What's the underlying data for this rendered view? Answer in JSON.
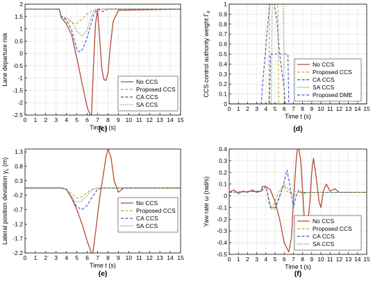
{
  "colors": {
    "no_ccs": "#b5472f",
    "proposed_ccs": "#c9a227",
    "ca_ccs": "#3a4ec0",
    "sa_ccs": "#5c8a3a",
    "proposed_dme": "#3a4ec0",
    "axis": "#000000",
    "grid": "#e3e3e3"
  },
  "chart_data": [
    {
      "panel": "c",
      "caption": "(c)",
      "type": "line",
      "title": "",
      "xlabel": "Time t (s)",
      "ylabel": "Lane departure risk",
      "xlim": [
        0,
        15
      ],
      "ylim": [
        -2.5,
        2
      ],
      "xticks": [
        "0",
        "1",
        "2",
        "3",
        "4",
        "5",
        "6",
        "7",
        "8",
        "9",
        "10",
        "11",
        "12",
        "13",
        "14",
        "15"
      ],
      "yticks": [
        "2",
        "1.5",
        "1",
        "0.5",
        "0",
        "-0.5",
        "-1",
        "-1.5",
        "-2",
        "-2.5"
      ],
      "grid": true,
      "legend": "bottom-right",
      "series": [
        {
          "name": "No CCS",
          "style": "solid",
          "color_key": "no_ccs",
          "x": [
            0,
            3.3,
            3.5,
            4,
            4.5,
            5,
            5.5,
            6,
            6.4,
            6.6,
            6.8,
            7,
            7.2,
            7.4,
            7.6,
            7.8,
            8,
            8.2,
            8.5,
            9,
            15
          ],
          "y": [
            1.8,
            1.8,
            1.45,
            1.2,
            0.75,
            -0.2,
            -1.2,
            -2.2,
            -2.6,
            -0.5,
            1.2,
            1.75,
            0.6,
            -0.6,
            -1.05,
            -1.1,
            -0.8,
            0.2,
            1.3,
            1.75,
            1.8
          ]
        },
        {
          "name": "Proposed CCS",
          "style": "dashed",
          "color_key": "proposed_ccs",
          "x": [
            0,
            3.3,
            3.5,
            4,
            4.5,
            5,
            5.5,
            6,
            6.5,
            7,
            15
          ],
          "y": [
            1.8,
            1.8,
            1.5,
            1.4,
            1.25,
            1.2,
            1.4,
            1.6,
            1.75,
            1.8,
            1.8
          ]
        },
        {
          "name": "CA CCS",
          "style": "dashed",
          "color_key": "ca_ccs",
          "x": [
            0,
            3.3,
            3.5,
            4,
            4.5,
            5,
            5.3,
            5.6,
            6,
            6.3,
            6.6,
            7,
            7.5,
            8,
            15
          ],
          "y": [
            1.8,
            1.8,
            1.5,
            1.35,
            0.95,
            0.15,
            0.05,
            0.2,
            0.65,
            1.1,
            1.55,
            1.8,
            1.7,
            1.8,
            1.8
          ]
        },
        {
          "name": "SA CCS",
          "style": "dotted",
          "color_key": "sa_ccs",
          "x": [
            0,
            3.3,
            3.5,
            4,
            4.5,
            5,
            5.5,
            6,
            6.3,
            6.6,
            7,
            15
          ],
          "y": [
            1.8,
            1.8,
            1.5,
            1.45,
            1.3,
            0.9,
            0.7,
            0.95,
            1.4,
            1.7,
            1.8,
            1.8
          ]
        }
      ]
    },
    {
      "panel": "d",
      "caption": "(d)",
      "type": "line",
      "title": "",
      "xlabel": "Time t (s)",
      "ylabel": "CCS control authority weight Γ",
      "ylabel_sub": "d",
      "xlim": [
        0,
        15
      ],
      "ylim": [
        0,
        1
      ],
      "xticks": [
        "0",
        "1",
        "2",
        "3",
        "4",
        "5",
        "6",
        "7",
        "8",
        "9",
        "10",
        "11",
        "12",
        "13",
        "14",
        "15"
      ],
      "yticks": [
        "1",
        "0.9",
        "0.8",
        "0.7",
        "0.6",
        "0.5",
        "0.4",
        "0.3",
        "0.2",
        "0.1",
        "0"
      ],
      "grid": true,
      "legend": "right",
      "series": [
        {
          "name": "No CCS",
          "style": "solid",
          "color_key": "no_ccs",
          "x": [
            0,
            15
          ],
          "y": [
            0,
            0
          ]
        },
        {
          "name": "Proposed CCS",
          "style": "dashed",
          "color_key": "proposed_ccs",
          "x": [
            0,
            4.3,
            4.4,
            5.3,
            5.4,
            15
          ],
          "y": [
            0,
            0,
            1,
            1,
            0,
            0
          ]
        },
        {
          "name": "CA CCS",
          "style": "dashed",
          "color_key": "ca_ccs",
          "x": [
            0,
            3.5,
            3.6,
            4.4,
            4.9,
            5.2,
            5.5,
            6,
            6.1,
            15
          ],
          "y": [
            0,
            0,
            0.15,
            1,
            1,
            0.85,
            0.5,
            0.15,
            0,
            0
          ]
        },
        {
          "name": "SA CCS",
          "style": "dotted",
          "color_key": "sa_ccs",
          "x": [
            0,
            4.6,
            4.7,
            5.9,
            6,
            15
          ],
          "y": [
            0,
            0,
            1,
            1,
            0,
            0
          ]
        },
        {
          "name": "Proposed DME",
          "style": "dashed",
          "color_key": "proposed_dme",
          "x": [
            0,
            4.4,
            4.5,
            5.4,
            5.5,
            6.4,
            6.5,
            15
          ],
          "y": [
            0,
            0,
            0.5,
            0.5,
            0.5,
            0.5,
            0,
            0
          ]
        }
      ]
    },
    {
      "panel": "e",
      "caption": "(e)",
      "type": "line",
      "title": "",
      "xlabel": "Time t (s)",
      "ylabel": "Lateral position deviation y",
      "ylabel_sub": "L",
      "ylabel_unit": " (m)",
      "xlim": [
        0,
        15
      ],
      "ylim": [
        -2.2,
        1.4
      ],
      "xticks": [
        "0",
        "1",
        "2",
        "3",
        "4",
        "5",
        "6",
        "7",
        "8",
        "9",
        "10",
        "11",
        "12",
        "13",
        "14",
        "15"
      ],
      "yticks": [
        "1.3",
        "0.8",
        "0.3",
        "-0.2",
        "-0.7",
        "-1.2",
        "-1.7",
        "-2.2"
      ],
      "ytick_values": [
        1.3,
        0.8,
        0.3,
        -0.2,
        -0.7,
        -1.2,
        -1.7,
        -2.2
      ],
      "grid": false,
      "legend": "bottom-right",
      "series": [
        {
          "name": "No CCS",
          "style": "solid",
          "color_key": "no_ccs",
          "x": [
            0,
            3.5,
            4,
            4.5,
            5,
            5.5,
            6,
            6.5,
            6.8,
            7.2,
            7.5,
            7.8,
            8,
            8.3,
            8.6,
            9,
            9.5,
            15
          ],
          "y": [
            0.05,
            0.05,
            0,
            -0.3,
            -0.7,
            -1.2,
            -1.8,
            -2.3,
            -1.5,
            -0.3,
            0.4,
            1.1,
            1.4,
            1.1,
            0.3,
            -0.1,
            0.05,
            0.05
          ]
        },
        {
          "name": "Proposed CCS",
          "style": "dashed",
          "color_key": "proposed_ccs",
          "x": [
            0,
            3.5,
            4,
            4.5,
            5,
            5.5,
            6,
            6.5,
            7,
            15
          ],
          "y": [
            0.05,
            0.05,
            0,
            -0.15,
            -0.3,
            -0.25,
            -0.1,
            0,
            0.05,
            0.05
          ]
        },
        {
          "name": "CA CCS",
          "style": "dashed",
          "color_key": "ca_ccs",
          "x": [
            0,
            3.5,
            4,
            4.5,
            5,
            5.5,
            6,
            6.5,
            7,
            7.5,
            8,
            15
          ],
          "y": [
            0.05,
            0.05,
            0,
            -0.3,
            -0.6,
            -0.7,
            -0.55,
            -0.25,
            0,
            0.05,
            0.05,
            0.05
          ]
        },
        {
          "name": "SA CCS",
          "style": "dotted",
          "color_key": "sa_ccs",
          "x": [
            0,
            3.5,
            4,
            4.5,
            5,
            5.5,
            6,
            6.5,
            7,
            15
          ],
          "y": [
            0.05,
            0.05,
            0,
            -0.25,
            -0.45,
            -0.4,
            -0.2,
            0,
            0.05,
            0.05
          ]
        }
      ]
    },
    {
      "panel": "f",
      "caption": "(f)",
      "type": "line",
      "title": "",
      "xlabel": "Time t (s)",
      "ylabel": "Yaw rate ω (rad/s)",
      "xlim": [
        0,
        15
      ],
      "ylim": [
        -0.5,
        0.4
      ],
      "xticks": [
        "0",
        "1",
        "2",
        "3",
        "4",
        "5",
        "6",
        "7",
        "8",
        "9",
        "10",
        "11",
        "12",
        "13",
        "14",
        "15"
      ],
      "yticks": [
        "0.4",
        "0.3",
        "0.2",
        "0.1",
        "0",
        "-0.1",
        "-0.2",
        "-0.3",
        "-0.4",
        "-0.5"
      ],
      "grid": true,
      "legend": "bottom-right",
      "series": [
        {
          "name": "No CCS",
          "style": "solid",
          "color_key": "no_ccs",
          "x": [
            0,
            0.5,
            1,
            1.5,
            2,
            2.5,
            3,
            3.5,
            3.6,
            4,
            4.5,
            5,
            5.5,
            6,
            6.5,
            6.8,
            7,
            7.3,
            7.5,
            7.8,
            8,
            8.2,
            8.5,
            8.8,
            9,
            9.2,
            9.5,
            9.8,
            10,
            10.3,
            10.6,
            11,
            11.5,
            12,
            15
          ],
          "y": [
            0.03,
            0.05,
            0.02,
            0.04,
            0.03,
            0.05,
            0.03,
            0.04,
            0.08,
            0.08,
            0.05,
            -0.05,
            -0.2,
            -0.4,
            -0.48,
            -0.35,
            -0.05,
            0.3,
            0.45,
            0.3,
            0.05,
            -0.2,
            -0.3,
            -0.05,
            0.2,
            0.32,
            0.15,
            -0.05,
            -0.1,
            0.05,
            0.1,
            0.04,
            0.06,
            0.03,
            0.03
          ]
        },
        {
          "name": "Proposed CCS",
          "style": "dashed",
          "color_key": "proposed_ccs",
          "x": [
            0,
            3.5,
            4,
            4.3,
            4.6,
            5,
            5.5,
            6,
            6.5,
            7,
            7.5,
            15
          ],
          "y": [
            0.03,
            0.04,
            0.08,
            -0.05,
            -0.12,
            -0.05,
            0.05,
            0.08,
            0.02,
            0.04,
            0.03,
            0.03
          ]
        },
        {
          "name": "CA CCS",
          "style": "dashed",
          "color_key": "ca_ccs",
          "x": [
            0,
            3.5,
            4,
            4.5,
            5,
            5.5,
            6,
            6.3,
            6.6,
            7,
            7.3,
            7.6,
            8,
            8.5,
            15
          ],
          "y": [
            0.03,
            0.04,
            0.08,
            -0.1,
            -0.1,
            0,
            0.12,
            0.22,
            0.1,
            -0.1,
            0,
            0.05,
            0.02,
            0.03,
            0.03
          ]
        },
        {
          "name": "SA CCS",
          "style": "dotted",
          "color_key": "sa_ccs",
          "x": [
            0,
            3.5,
            4,
            4.5,
            5,
            5.5,
            6,
            6.5,
            7,
            7.5,
            15
          ],
          "y": [
            0.03,
            0.04,
            0.08,
            -0.08,
            -0.12,
            -0.02,
            0.1,
            0.05,
            0,
            0.03,
            0.03
          ]
        }
      ]
    }
  ]
}
